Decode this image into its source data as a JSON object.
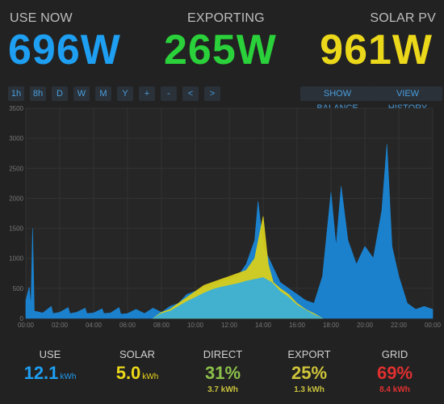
{
  "header": {
    "use_now": {
      "label": "USE NOW",
      "value": "696W",
      "color": "#1e9ff2"
    },
    "exporting": {
      "label": "EXPORTING",
      "value": "265W",
      "color": "#2ad13a"
    },
    "solar_pv": {
      "label": "SOLAR PV",
      "value": "961W",
      "color": "#ecd81a"
    }
  },
  "toolbar": {
    "range_buttons": [
      "1h",
      "8h",
      "D",
      "W",
      "M",
      "Y",
      "+",
      "-",
      "<",
      ">"
    ],
    "show_balance": "SHOW BALANCE",
    "view_history": "VIEW HISTORY"
  },
  "chart_data": {
    "type": "area",
    "title": "",
    "xlabel": "",
    "ylabel": "",
    "x_ticks": [
      "00:00",
      "02:00",
      "04:00",
      "06:00",
      "08:00",
      "10:00",
      "12:00",
      "14:00",
      "16:00",
      "18:00",
      "20:00",
      "22:00",
      "00:00"
    ],
    "y_ticks": [
      0,
      500,
      1000,
      1500,
      2000,
      2500,
      3000,
      3500
    ],
    "xlim": [
      0,
      24
    ],
    "ylim": [
      0,
      3500
    ],
    "grid": true,
    "series": [
      {
        "color": "#1a86d6",
        "points": [
          [
            0,
            300
          ],
          [
            0.2,
            520
          ],
          [
            0.3,
            200
          ],
          [
            0.4,
            1500
          ],
          [
            0.5,
            120
          ],
          [
            1,
            90
          ],
          [
            1.5,
            200
          ],
          [
            1.6,
            80
          ],
          [
            2,
            100
          ],
          [
            2.5,
            180
          ],
          [
            2.6,
            80
          ],
          [
            3,
            100
          ],
          [
            3.5,
            170
          ],
          [
            3.6,
            80
          ],
          [
            4,
            90
          ],
          [
            4.5,
            160
          ],
          [
            4.6,
            80
          ],
          [
            5,
            90
          ],
          [
            5.5,
            180
          ],
          [
            5.6,
            70
          ],
          [
            6,
            80
          ],
          [
            6.5,
            150
          ],
          [
            7,
            80
          ],
          [
            7.5,
            170
          ],
          [
            8,
            100
          ],
          [
            8.5,
            200
          ],
          [
            9,
            250
          ],
          [
            9.5,
            400
          ],
          [
            10,
            450
          ],
          [
            10.5,
            500
          ],
          [
            11,
            550
          ],
          [
            11.5,
            600
          ],
          [
            12,
            650
          ],
          [
            12.5,
            700
          ],
          [
            13,
            900
          ],
          [
            13.5,
            1300
          ],
          [
            13.7,
            1950
          ],
          [
            14,
            1200
          ],
          [
            14.5,
            900
          ],
          [
            15,
            600
          ],
          [
            15.5,
            500
          ],
          [
            16,
            400
          ],
          [
            16.5,
            300
          ],
          [
            17,
            250
          ],
          [
            17.5,
            700
          ],
          [
            18,
            2100
          ],
          [
            18.3,
            1200
          ],
          [
            18.6,
            2200
          ],
          [
            19,
            1300
          ],
          [
            19.5,
            900
          ],
          [
            20,
            1200
          ],
          [
            20.5,
            1000
          ],
          [
            21,
            1800
          ],
          [
            21.3,
            2900
          ],
          [
            21.6,
            1200
          ],
          [
            22,
            700
          ],
          [
            22.5,
            250
          ],
          [
            23,
            150
          ],
          [
            23.5,
            200
          ],
          [
            24,
            150
          ]
        ]
      },
      {
        "color": "#d8cf1c",
        "points": [
          [
            7.5,
            0
          ],
          [
            8,
            100
          ],
          [
            8.5,
            150
          ],
          [
            9,
            250
          ],
          [
            9.5,
            350
          ],
          [
            10,
            450
          ],
          [
            10.5,
            550
          ],
          [
            11,
            600
          ],
          [
            11.5,
            650
          ],
          [
            12,
            700
          ],
          [
            12.5,
            750
          ],
          [
            13,
            800
          ],
          [
            13.5,
            1000
          ],
          [
            14,
            1700
          ],
          [
            14.3,
            900
          ],
          [
            14.6,
            600
          ],
          [
            15,
            500
          ],
          [
            15.5,
            400
          ],
          [
            16,
            250
          ],
          [
            16.5,
            150
          ],
          [
            17,
            80
          ],
          [
            17.5,
            0
          ]
        ]
      },
      {
        "color": "#3aafd8",
        "points": [
          [
            7.5,
            0
          ],
          [
            8,
            80
          ],
          [
            8.5,
            120
          ],
          [
            9,
            200
          ],
          [
            9.5,
            280
          ],
          [
            10,
            350
          ],
          [
            10.5,
            420
          ],
          [
            11,
            480
          ],
          [
            11.5,
            520
          ],
          [
            12,
            550
          ],
          [
            12.5,
            580
          ],
          [
            13,
            620
          ],
          [
            13.5,
            650
          ],
          [
            14,
            680
          ],
          [
            14.5,
            600
          ],
          [
            15,
            450
          ],
          [
            15.5,
            350
          ],
          [
            16,
            220
          ],
          [
            16.5,
            140
          ],
          [
            17,
            60
          ],
          [
            17.5,
            0
          ]
        ]
      }
    ]
  },
  "summary": {
    "use": {
      "label": "USE",
      "value": "12.1",
      "unit": "kWh",
      "color": "#1e9ff2"
    },
    "solar": {
      "label": "SOLAR",
      "value": "5.0",
      "unit": "kWh",
      "color": "#ecd81a"
    },
    "direct": {
      "label": "DIRECT",
      "value": "31%",
      "sub": "3.7 kWh",
      "color": "#8cc04a",
      "sub_color": "#c9c23c"
    },
    "export": {
      "label": "EXPORT",
      "value": "25%",
      "sub": "1.3 kWh",
      "color": "#cfc43a",
      "sub_color": "#c9c23c"
    },
    "grid": {
      "label": "GRID",
      "value": "69%",
      "sub": "8.4 kWh",
      "color": "#e03030",
      "sub_color": "#e03030"
    }
  }
}
